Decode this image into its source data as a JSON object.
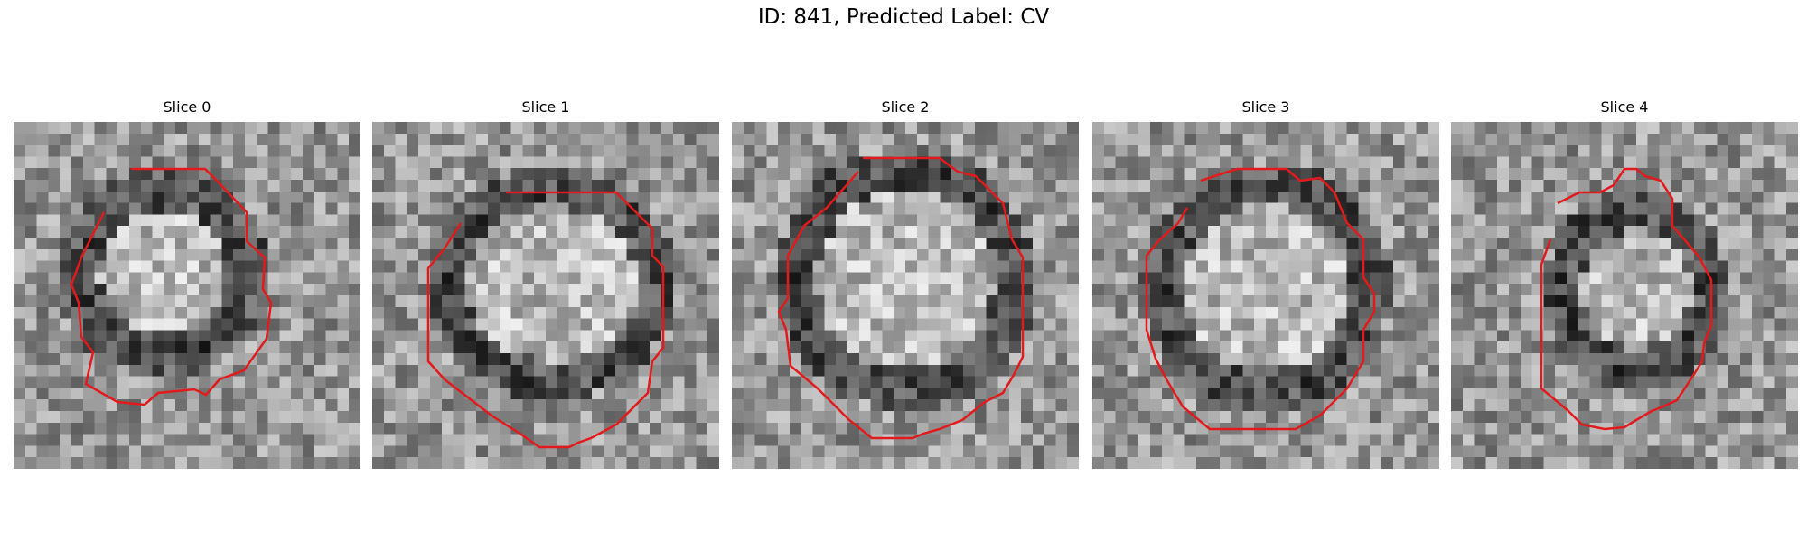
{
  "figure": {
    "title": "ID: 841, Predicted Label: CV",
    "contour_color": "#e31a1c",
    "panels": [
      {
        "title": "Slice 0"
      },
      {
        "title": "Slice 1"
      },
      {
        "title": "Slice 2"
      },
      {
        "title": "Slice 3"
      },
      {
        "title": "Slice 4"
      }
    ]
  }
}
